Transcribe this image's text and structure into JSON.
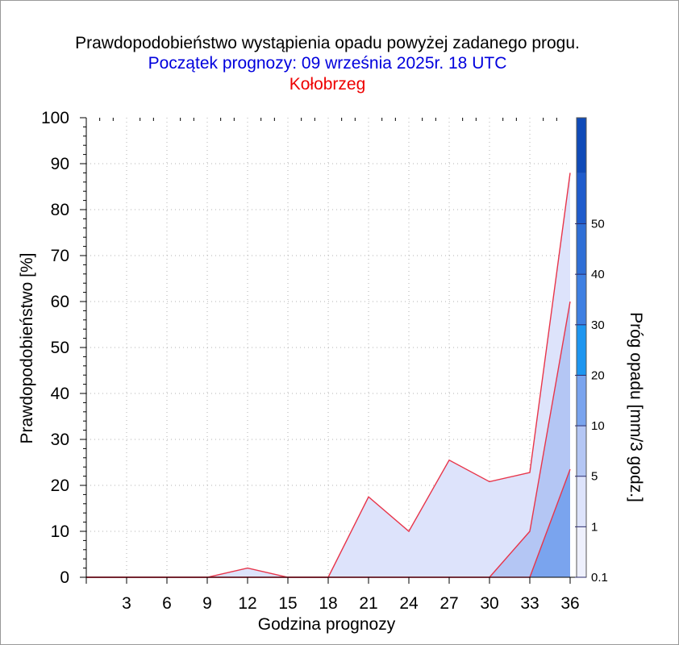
{
  "title": {
    "line1": "Prawdopodobieństwo wystąpienia opadu powyżej zadanego progu.",
    "line2": "Początek prognozy: 09 września 2025r. 18 UTC",
    "line3": "Kołobrzeg"
  },
  "colors": {
    "title_line1": "#000000",
    "title_line2": "#0000dd",
    "title_line3": "#ee0000",
    "outline": "#e8354a"
  },
  "chart_data": {
    "type": "area",
    "xlabel": "Godzina prognozy",
    "ylabel": "Prawdopodobieństwo [%]",
    "x": [
      0,
      3,
      6,
      9,
      12,
      15,
      18,
      21,
      24,
      27,
      30,
      33,
      36
    ],
    "xticks": [
      "3",
      "6",
      "9",
      "12",
      "15",
      "18",
      "21",
      "24",
      "27",
      "30",
      "33",
      "36"
    ],
    "xlim": [
      0,
      36
    ],
    "ylim": [
      0,
      100
    ],
    "yticks": [
      "0",
      "10",
      "20",
      "30",
      "40",
      "50",
      "60",
      "70",
      "80",
      "90",
      "100"
    ],
    "grid": true,
    "series": [
      {
        "name": "0.1",
        "color": "#dde3fb",
        "values": [
          0,
          0,
          0,
          0,
          2,
          0,
          0,
          17.5,
          10,
          25.5,
          20.8,
          22.8,
          88
        ]
      },
      {
        "name": "1",
        "color": "#b4c6f4",
        "values": [
          0,
          0,
          0,
          0,
          0,
          0,
          0,
          0,
          0,
          0,
          0,
          10,
          60
        ]
      },
      {
        "name": "5",
        "color": "#7aa4ee",
        "values": [
          0,
          0,
          0,
          0,
          0,
          0,
          0,
          0,
          0,
          0,
          0,
          0,
          23.5
        ]
      }
    ],
    "colorbar": {
      "label": "Próg opadu [mm/3 godz.]",
      "ticks": [
        "0.1",
        "1",
        "5",
        "10",
        "20",
        "30",
        "40",
        "50"
      ],
      "colors": [
        "#eef0fd",
        "#dde3fb",
        "#b4c6f4",
        "#7aa4ee",
        "#1e96f0",
        "#3f80e2",
        "#2f6fd6",
        "#1f5ccc",
        "#0f4ab8"
      ]
    }
  }
}
